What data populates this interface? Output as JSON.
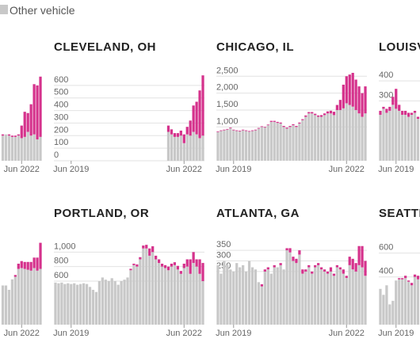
{
  "legend": [
    {
      "name": "Other vehicle",
      "color": "#c8c8c8"
    }
  ],
  "chart_data": [
    {
      "type": "bar",
      "stacked": true,
      "x": [
        35,
        36,
        37,
        38,
        39,
        40,
        41,
        42,
        43,
        44,
        45,
        46,
        47
      ],
      "xlim": [
        -0.5,
        47.5
      ],
      "xticks": [
        {
          "value": 41,
          "label": "Jun 2022"
        }
      ],
      "ylim": [
        0,
        700
      ],
      "yticks": [],
      "series": [
        {
          "color": "#c8c8c8",
          "values": [
            200,
            210,
            200,
            190,
            190,
            200,
            180,
            190,
            230,
            200,
            210,
            170,
            190
          ]
        },
        {
          "color": "#d5328c",
          "values": [
            10,
            0,
            10,
            10,
            10,
            10,
            100,
            200,
            150,
            250,
            400,
            430,
            480
          ]
        }
      ]
    },
    {
      "type": "bar",
      "stacked": true,
      "title": "CLEVELAND, OH",
      "x": [
        36,
        37,
        38,
        39,
        40,
        41,
        42,
        43,
        44,
        45,
        46,
        47
      ],
      "xlim": [
        -0.5,
        47.5
      ],
      "xticks": [
        {
          "value": 5,
          "label": "Jun 2019"
        },
        {
          "value": 41,
          "label": "Jun 2022"
        }
      ],
      "ylim": [
        0,
        700
      ],
      "yticks": [
        0,
        100,
        200,
        300,
        400,
        500,
        600
      ],
      "series": [
        {
          "color": "#c8c8c8",
          "values": [
            230,
            210,
            190,
            190,
            200,
            140,
            210,
            200,
            230,
            210,
            180,
            200
          ]
        },
        {
          "color": "#d5328c",
          "values": [
            50,
            40,
            30,
            30,
            40,
            70,
            60,
            120,
            210,
            260,
            380,
            480
          ]
        }
      ]
    },
    {
      "type": "bar",
      "stacked": true,
      "title": "CHICAGO, IL",
      "xlim": [
        -0.5,
        47.5
      ],
      "xticks": [
        {
          "value": 5,
          "label": "Jun 2019"
        },
        {
          "value": 41,
          "label": "Jun 2022"
        }
      ],
      "ylim": [
        0,
        2600
      ],
      "yticks": [
        {
          "value": 1000,
          "label": "1,000"
        },
        {
          "value": 1500,
          "label": "1,500"
        },
        {
          "value": 2000,
          "label": "2,000"
        },
        {
          "value": 2500,
          "label": "2,500"
        }
      ],
      "series": [
        {
          "color": "#c8c8c8",
          "values": [
            850,
            880,
            900,
            920,
            960,
            900,
            880,
            870,
            900,
            880,
            860,
            880,
            900,
            950,
            1000,
            980,
            1050,
            1150,
            1150,
            1120,
            1100,
            1000,
            950,
            1000,
            1050,
            1000,
            1100,
            1200,
            1300,
            1400,
            1400,
            1350,
            1300,
            1300,
            1350,
            1400,
            1400,
            1350,
            1500,
            1500,
            1550,
            1700,
            1650,
            1600,
            1500,
            1400,
            1300,
            1400
          ]
        },
        {
          "color": "#d5328c",
          "values": [
            20,
            20,
            20,
            20,
            20,
            20,
            20,
            20,
            20,
            20,
            20,
            20,
            20,
            20,
            20,
            20,
            20,
            30,
            30,
            30,
            30,
            30,
            30,
            30,
            30,
            30,
            30,
            30,
            40,
            40,
            40,
            40,
            40,
            50,
            50,
            60,
            80,
            100,
            150,
            300,
            700,
            800,
            900,
            1000,
            900,
            800,
            700,
            800
          ]
        }
      ]
    },
    {
      "type": "bar",
      "stacked": true,
      "title": "LOUISV",
      "xlim": [
        -0.5,
        47.5
      ],
      "xticks": [
        {
          "value": 5,
          "label": "Jun 2019"
        }
      ],
      "ylim": [
        0,
        440
      ],
      "yticks": [
        300,
        400
      ],
      "series": [
        {
          "color": "#c8c8c8",
          "values": [
            230,
            260,
            240,
            250,
            280,
            260,
            250,
            230,
            230,
            220,
            230,
            240,
            210
          ]
        },
        {
          "color": "#d5328c",
          "values": [
            20,
            10,
            20,
            20,
            40,
            100,
            30,
            20,
            20,
            20,
            10,
            10,
            10
          ]
        }
      ]
    },
    {
      "type": "bar",
      "stacked": true,
      "x": [
        35,
        36,
        37,
        38,
        39,
        40,
        41,
        42,
        43,
        44,
        45,
        46,
        47
      ],
      "xlim": [
        -0.5,
        47.5
      ],
      "xticks": [
        {
          "value": 41,
          "label": "Jun 2022"
        }
      ],
      "ylim": [
        0,
        1000
      ],
      "yticks": [],
      "series": [
        {
          "color": "#c8c8c8",
          "values": [
            450,
            450,
            400,
            520,
            550,
            640,
            650,
            640,
            630,
            620,
            650,
            620,
            640
          ]
        },
        {
          "color": "#d5328c",
          "values": [
            0,
            0,
            0,
            0,
            20,
            60,
            80,
            80,
            90,
            100,
            120,
            150,
            300
          ]
        }
      ]
    },
    {
      "type": "bar",
      "stacked": true,
      "title": "PORTLAND, OR",
      "xlim": [
        -0.5,
        47.5
      ],
      "xticks": [
        {
          "value": 5,
          "label": "Jun 2019"
        },
        {
          "value": 41,
          "label": "Jun 2022"
        }
      ],
      "ylim": [
        0,
        1200
      ],
      "yticks": [
        600,
        800,
        {
          "value": 1000,
          "label": "1,000"
        }
      ],
      "series": [
        {
          "color": "#c8c8c8",
          "values": [
            580,
            570,
            580,
            560,
            570,
            560,
            570,
            550,
            560,
            570,
            560,
            520,
            480,
            450,
            600,
            650,
            620,
            600,
            640,
            600,
            550,
            600,
            620,
            650,
            750,
            820,
            800,
            900,
            1050,
            1050,
            950,
            1000,
            900,
            850,
            800,
            780,
            750,
            800,
            820,
            760,
            700,
            780,
            800,
            700,
            850,
            800,
            700,
            600
          ]
        },
        {
          "color": "#d5328c",
          "values": [
            0,
            0,
            0,
            0,
            0,
            0,
            0,
            0,
            0,
            0,
            0,
            0,
            0,
            0,
            0,
            0,
            0,
            0,
            0,
            0,
            0,
            0,
            0,
            0,
            20,
            20,
            30,
            30,
            40,
            50,
            100,
            80,
            50,
            50,
            40,
            40,
            50,
            40,
            40,
            50,
            40,
            60,
            100,
            200,
            150,
            100,
            200,
            250
          ]
        }
      ]
    },
    {
      "type": "bar",
      "stacked": true,
      "title": "ATLANTA, GA",
      "xlim": [
        -0.5,
        47.5
      ],
      "xticks": [
        {
          "value": 5,
          "label": "Jun 2019"
        },
        {
          "value": 41,
          "label": "Jun 2022"
        }
      ],
      "ylim": [
        0,
        410
      ],
      "yticks": [
        250,
        300,
        350
      ],
      "series": [
        {
          "color": "#c8c8c8",
          "values": [
            280,
            240,
            300,
            280,
            260,
            250,
            290,
            270,
            280,
            250,
            300,
            270,
            260,
            200,
            180,
            250,
            260,
            240,
            270,
            270,
            280,
            260,
            350,
            340,
            300,
            290,
            330,
            240,
            250,
            270,
            240,
            270,
            280,
            260,
            250,
            240,
            250,
            230,
            270,
            260,
            240,
            220,
            280,
            260,
            250,
            280,
            270,
            230
          ]
        },
        {
          "color": "#d5328c",
          "values": [
            0,
            0,
            0,
            0,
            0,
            0,
            0,
            0,
            0,
            0,
            0,
            0,
            0,
            0,
            10,
            10,
            10,
            0,
            10,
            0,
            10,
            0,
            10,
            20,
            20,
            20,
            20,
            20,
            10,
            10,
            10,
            10,
            10,
            10,
            10,
            10,
            20,
            10,
            10,
            10,
            20,
            10,
            40,
            50,
            40,
            90,
            100,
            70
          ]
        }
      ]
    },
    {
      "type": "bar",
      "stacked": true,
      "title": "SEATTL",
      "xlim": [
        -0.5,
        47.5
      ],
      "xticks": [
        {
          "value": 5,
          "label": "Jun 2019"
        }
      ],
      "ylim": [
        0,
        730
      ],
      "yticks": [
        400,
        600
      ],
      "series": [
        {
          "color": "#c8c8c8",
          "values": [
            300,
            250,
            330,
            170,
            200,
            370,
            380,
            380,
            390,
            360,
            330,
            400,
            380
          ]
        },
        {
          "color": "#d5328c",
          "values": [
            0,
            0,
            0,
            0,
            0,
            0,
            10,
            10,
            20,
            10,
            20,
            20,
            30
          ]
        }
      ]
    }
  ]
}
